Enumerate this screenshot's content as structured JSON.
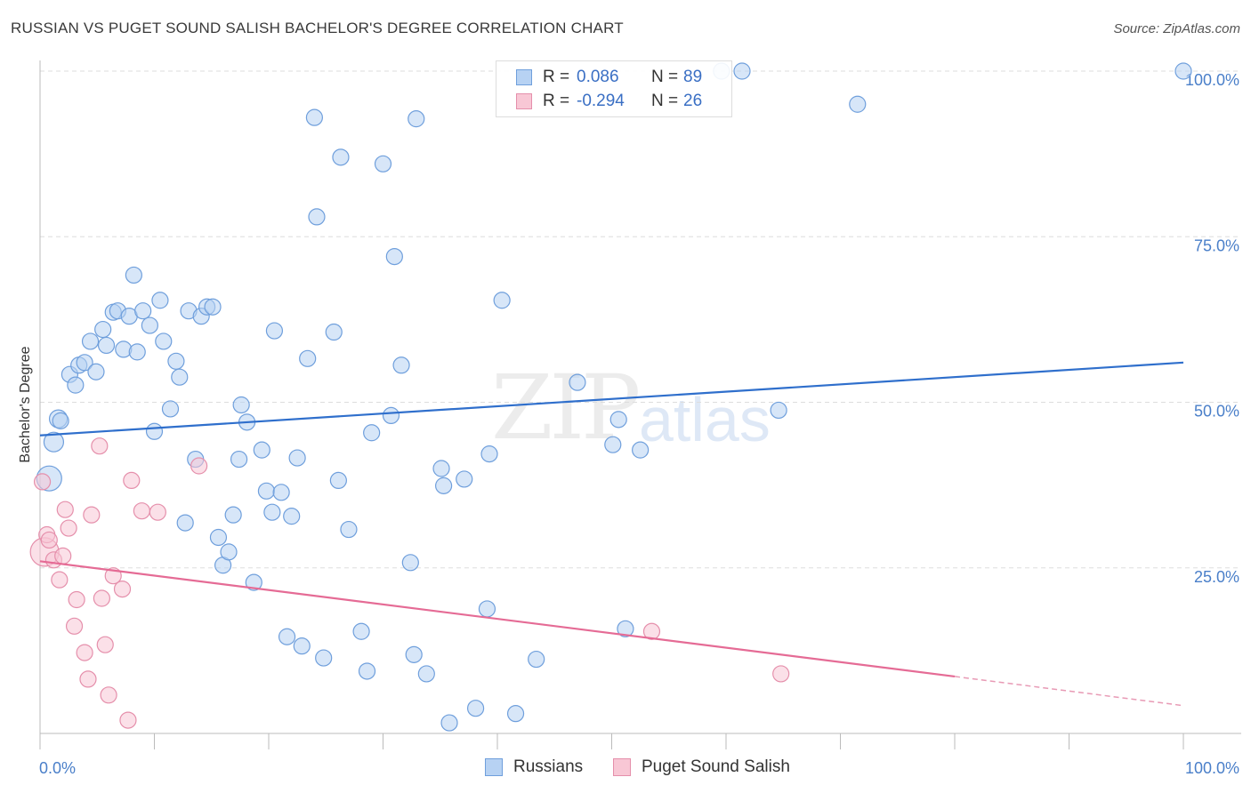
{
  "title": "RUSSIAN VS PUGET SOUND SALISH BACHELOR'S DEGREE CORRELATION CHART",
  "source": "Source: ZipAtlas.com",
  "watermark": {
    "zip": "ZIP",
    "atlas": "atlas"
  },
  "legend": {
    "r_label": "R =",
    "n_label": "N =",
    "rows": [
      {
        "r": "0.086",
        "n": "89",
        "fill": "#b7d2f3",
        "stroke": "#6f9fdc"
      },
      {
        "r": "-0.294",
        "n": "26",
        "fill": "#f8c7d5",
        "stroke": "#e58fab"
      }
    ]
  },
  "bottom_legend": [
    {
      "label": "Russians",
      "fill": "#b7d2f3",
      "stroke": "#6f9fdc"
    },
    {
      "label": "Puget Sound Salish",
      "fill": "#f8c7d5",
      "stroke": "#e58fab"
    }
  ],
  "chart_data": {
    "type": "scatter",
    "title": "RUSSIAN VS PUGET SOUND SALISH BACHELOR'S DEGREE CORRELATION CHART",
    "xlabel": "",
    "ylabel": "Bachelor's Degree",
    "xlim": [
      0,
      100
    ],
    "ylim": [
      0,
      100
    ],
    "x_tick_labels": [
      "0.0%",
      "100.0%"
    ],
    "y_ticks": [
      25,
      50,
      75,
      100
    ],
    "y_tick_labels": [
      "25.0%",
      "50.0%",
      "75.0%",
      "100.0%"
    ],
    "grid": "horizontal dashed",
    "colors": {
      "russians": "#4a86d8",
      "salish": "#e87aa0"
    },
    "series": [
      {
        "name": "Russians",
        "color": "#6f9fdc",
        "trend": {
          "x": [
            0,
            100
          ],
          "y": [
            45.0,
            56.0
          ]
        },
        "points": [
          [
            0.8,
            38.5,
            14
          ],
          [
            1.2,
            44.0,
            11
          ],
          [
            1.6,
            47.5,
            10
          ],
          [
            1.8,
            47.2,
            9
          ],
          [
            2.6,
            54.2,
            9
          ],
          [
            3.1,
            52.6,
            9
          ],
          [
            3.4,
            55.6,
            9
          ],
          [
            3.9,
            56.0,
            9
          ],
          [
            4.4,
            59.2,
            9
          ],
          [
            4.9,
            54.6,
            9
          ],
          [
            5.5,
            61.0,
            9
          ],
          [
            5.8,
            58.6,
            9
          ],
          [
            6.4,
            63.6,
            9
          ],
          [
            6.8,
            63.8,
            9
          ],
          [
            7.3,
            58.0,
            9
          ],
          [
            7.8,
            63.0,
            9
          ],
          [
            8.2,
            69.2,
            9
          ],
          [
            8.5,
            57.6,
            9
          ],
          [
            9.0,
            63.8,
            9
          ],
          [
            9.6,
            61.6,
            9
          ],
          [
            10.0,
            45.6,
            9
          ],
          [
            10.5,
            65.4,
            9
          ],
          [
            10.8,
            59.2,
            9
          ],
          [
            11.4,
            49.0,
            9
          ],
          [
            11.9,
            56.2,
            9
          ],
          [
            12.2,
            53.8,
            9
          ],
          [
            12.7,
            31.8,
            9
          ],
          [
            13.0,
            63.8,
            9
          ],
          [
            13.6,
            41.4,
            9
          ],
          [
            14.1,
            63.0,
            9
          ],
          [
            14.6,
            64.4,
            9
          ],
          [
            15.1,
            64.4,
            9
          ],
          [
            15.6,
            29.6,
            9
          ],
          [
            16.0,
            25.4,
            9
          ],
          [
            16.5,
            27.4,
            9
          ],
          [
            16.9,
            33.0,
            9
          ],
          [
            17.4,
            41.4,
            9
          ],
          [
            17.6,
            49.6,
            9
          ],
          [
            18.1,
            47.0,
            9
          ],
          [
            18.7,
            22.8,
            9
          ],
          [
            19.4,
            42.8,
            9
          ],
          [
            19.8,
            36.6,
            9
          ],
          [
            20.3,
            33.4,
            9
          ],
          [
            20.5,
            60.8,
            9
          ],
          [
            21.1,
            36.4,
            9
          ],
          [
            21.6,
            14.6,
            9
          ],
          [
            22.0,
            32.8,
            9
          ],
          [
            22.5,
            41.6,
            9
          ],
          [
            22.9,
            13.2,
            9
          ],
          [
            23.4,
            56.6,
            9
          ],
          [
            24.0,
            93.0,
            9
          ],
          [
            24.2,
            78.0,
            9
          ],
          [
            24.8,
            11.4,
            9
          ],
          [
            25.7,
            60.6,
            9
          ],
          [
            26.1,
            38.2,
            9
          ],
          [
            26.3,
            87.0,
            9
          ],
          [
            27.0,
            30.8,
            9
          ],
          [
            28.1,
            15.4,
            9
          ],
          [
            28.6,
            9.4,
            9
          ],
          [
            29.0,
            45.4,
            9
          ],
          [
            30.0,
            86.0,
            9
          ],
          [
            30.7,
            48.0,
            9
          ],
          [
            31.0,
            72.0,
            9
          ],
          [
            31.6,
            55.6,
            9
          ],
          [
            32.4,
            25.8,
            9
          ],
          [
            32.7,
            11.9,
            9
          ],
          [
            32.9,
            92.8,
            9
          ],
          [
            33.8,
            9.0,
            9
          ],
          [
            35.1,
            40.0,
            9
          ],
          [
            35.3,
            37.4,
            9
          ],
          [
            35.8,
            1.6,
            9
          ],
          [
            37.1,
            38.4,
            9
          ],
          [
            38.1,
            3.8,
            9
          ],
          [
            39.1,
            18.8,
            9
          ],
          [
            39.3,
            42.2,
            9
          ],
          [
            40.4,
            65.4,
            9
          ],
          [
            41.6,
            3.0,
            9
          ],
          [
            43.4,
            11.2,
            9
          ],
          [
            47.0,
            53.0,
            9
          ],
          [
            50.1,
            43.6,
            9
          ],
          [
            50.6,
            47.4,
            9
          ],
          [
            51.2,
            15.8,
            9
          ],
          [
            52.5,
            42.8,
            9
          ],
          [
            59.6,
            100.0,
            9
          ],
          [
            61.4,
            100.0,
            9
          ],
          [
            64.6,
            48.8,
            9
          ],
          [
            71.5,
            95.0,
            9
          ],
          [
            100.0,
            100.0,
            9
          ]
        ]
      },
      {
        "name": "Puget Sound Salish",
        "color": "#e58fab",
        "trend": {
          "x": [
            0,
            80
          ],
          "y": [
            26.0,
            8.6
          ],
          "dash_to": [
            100,
            4.2
          ]
        },
        "points": [
          [
            0.2,
            38.0,
            9
          ],
          [
            0.4,
            27.4,
            16
          ],
          [
            0.6,
            30.0,
            9
          ],
          [
            0.8,
            29.2,
            9
          ],
          [
            1.2,
            26.2,
            9
          ],
          [
            1.7,
            23.2,
            9
          ],
          [
            2.0,
            26.8,
            9
          ],
          [
            2.2,
            33.8,
            9
          ],
          [
            2.5,
            31.0,
            9
          ],
          [
            3.0,
            16.2,
            9
          ],
          [
            3.2,
            20.2,
            9
          ],
          [
            3.9,
            12.2,
            9
          ],
          [
            4.2,
            8.2,
            9
          ],
          [
            4.5,
            33.0,
            9
          ],
          [
            5.2,
            43.4,
            9
          ],
          [
            5.4,
            20.4,
            9
          ],
          [
            5.7,
            13.4,
            9
          ],
          [
            6.0,
            5.8,
            9
          ],
          [
            6.4,
            23.8,
            9
          ],
          [
            7.2,
            21.8,
            9
          ],
          [
            7.7,
            2.0,
            9
          ],
          [
            8.0,
            38.2,
            9
          ],
          [
            8.9,
            33.6,
            9
          ],
          [
            10.3,
            33.4,
            9
          ],
          [
            13.9,
            40.4,
            9
          ],
          [
            53.5,
            15.4,
            9
          ],
          [
            64.8,
            9.0,
            9
          ]
        ]
      }
    ]
  }
}
